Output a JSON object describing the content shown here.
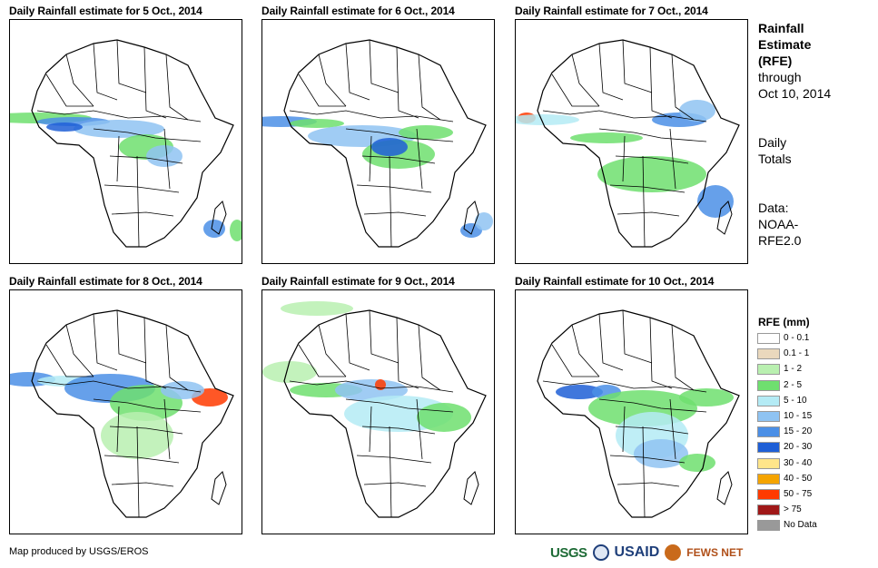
{
  "panels": [
    {
      "title": "Daily Rainfall estimate for 5 Oct., 2014"
    },
    {
      "title": "Daily Rainfall estimate for 6 Oct., 2014"
    },
    {
      "title": "Daily Rainfall estimate for 7 Oct., 2014"
    },
    {
      "title": "Daily Rainfall estimate for 8 Oct., 2014"
    },
    {
      "title": "Daily Rainfall estimate for 9 Oct., 2014"
    },
    {
      "title": "Daily Rainfall estimate for 10 Oct., 2014"
    }
  ],
  "sidebar": {
    "heading_line1": "Rainfall",
    "heading_line2": "Estimate",
    "heading_line3": "(RFE)",
    "through_line1": "through",
    "through_line2": "Oct 10, 2014",
    "totals_line1": "Daily",
    "totals_line2": "Totals",
    "data_line1": "Data:",
    "data_line2": "NOAA-",
    "data_line3": "RFE2.0"
  },
  "legend": {
    "title": "RFE (mm)",
    "items": [
      {
        "label": "0 - 0.1",
        "color": "#ffffff"
      },
      {
        "label": "0.1 - 1",
        "color": "#ead8bd"
      },
      {
        "label": "1 - 2",
        "color": "#b9f0b0"
      },
      {
        "label": "2 - 5",
        "color": "#6fdf6f"
      },
      {
        "label": "5 - 10",
        "color": "#b4ebf5"
      },
      {
        "label": "10 - 15",
        "color": "#8fc3f2"
      },
      {
        "label": "15 - 20",
        "color": "#4b8fe6"
      },
      {
        "label": "20 - 30",
        "color": "#1f5fd6"
      },
      {
        "label": "30 - 40",
        "color": "#ffe58a"
      },
      {
        "label": "40 - 50",
        "color": "#f5a400"
      },
      {
        "label": "50 - 75",
        "color": "#ff3a00"
      },
      {
        "label": "> 75",
        "color": "#a01818"
      },
      {
        "label": "No Data",
        "color": "#999999"
      }
    ]
  },
  "footer": {
    "credit": "Map produced by USGS/EROS",
    "logo_usgs": "USGS",
    "logo_usaid": "USAID",
    "logo_fews": "FEWS NET"
  }
}
